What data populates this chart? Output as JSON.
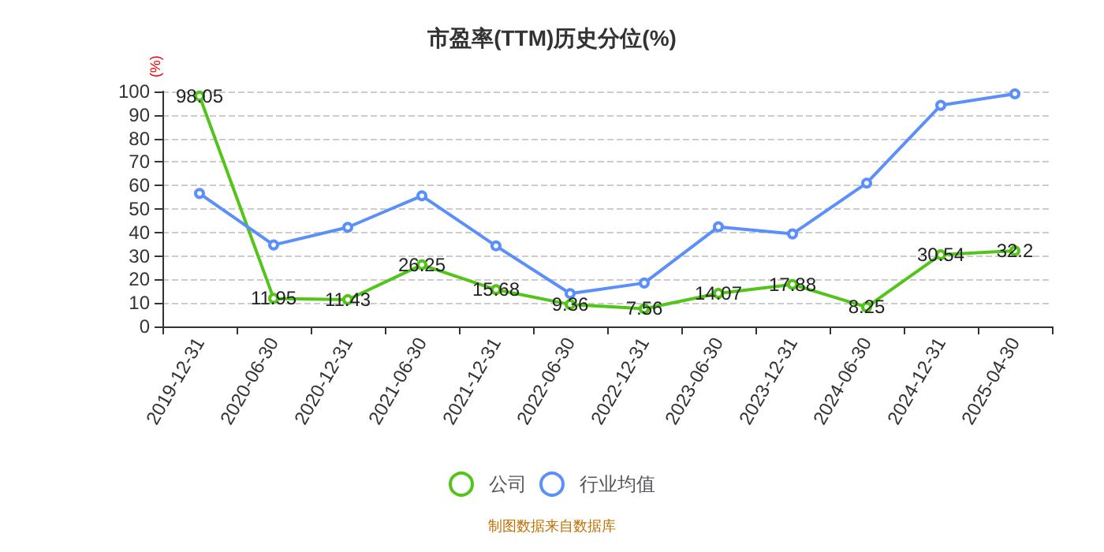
{
  "chart_data": {
    "type": "line",
    "title": "市盈率(TTM)历史分位(%)",
    "ylabel": "(%)",
    "categories": [
      "2019-12-31",
      "2020-06-30",
      "2020-12-31",
      "2021-06-30",
      "2021-12-31",
      "2022-06-30",
      "2022-12-31",
      "2023-06-30",
      "2023-12-31",
      "2024-06-30",
      "2024-12-31",
      "2025-04-30"
    ],
    "series": [
      {
        "name": "公司",
        "color": "#52c41a",
        "values": [
          98.05,
          11.95,
          11.43,
          26.25,
          15.68,
          9.36,
          7.56,
          14.07,
          17.88,
          8.25,
          30.54,
          32.2
        ],
        "data_labels": true
      },
      {
        "name": "行业均值",
        "color": "#5b8ff9",
        "values": [
          56.6,
          34.7,
          42.2,
          55.6,
          34.3,
          14,
          18.5,
          42.4,
          39.4,
          61,
          94.1,
          99
        ]
      }
    ],
    "ylim": [
      0,
      100
    ],
    "yticks": [
      0,
      10,
      20,
      30,
      40,
      50,
      60,
      70,
      80,
      90,
      100
    ],
    "grid": "y",
    "legend": "bottom",
    "marker": "circle",
    "line_style": "solid",
    "annotations": [
      "制图数据来自数据库"
    ]
  }
}
